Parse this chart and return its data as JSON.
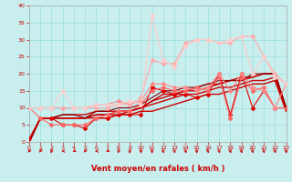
{
  "xlabel": "Vent moyen/en rafales ( km/h )",
  "xlim": [
    0,
    23
  ],
  "ylim": [
    0,
    40
  ],
  "yticks": [
    0,
    5,
    10,
    15,
    20,
    25,
    30,
    35,
    40
  ],
  "xticks": [
    0,
    1,
    2,
    3,
    4,
    5,
    6,
    7,
    8,
    9,
    10,
    11,
    12,
    13,
    14,
    15,
    16,
    17,
    18,
    19,
    20,
    21,
    22,
    23
  ],
  "bg_color": "#c8eeee",
  "grid_color": "#99dddd",
  "lines": [
    {
      "x": [
        0,
        1,
        2,
        3,
        4,
        5,
        6,
        7,
        8,
        9,
        10,
        11,
        12,
        13,
        14,
        15,
        16,
        17,
        18,
        19,
        20,
        21,
        22,
        23
      ],
      "y": [
        1,
        7,
        7,
        5,
        5,
        4,
        7,
        7,
        8,
        8,
        8,
        16,
        15,
        14,
        14,
        13,
        14,
        20,
        8,
        20,
        10,
        15,
        10,
        10
      ],
      "color": "#dd0000",
      "lw": 0.8,
      "marker": "D",
      "ms": 2.0
    },
    {
      "x": [
        0,
        1,
        2,
        3,
        4,
        5,
        6,
        7,
        8,
        9,
        10,
        11,
        12,
        13,
        14,
        15,
        16,
        17,
        18,
        19,
        20,
        21,
        22,
        23
      ],
      "y": [
        10,
        7,
        5,
        5,
        5,
        5,
        7,
        8,
        9,
        9,
        11,
        15,
        16,
        15,
        15,
        16,
        15,
        19,
        7,
        19,
        15,
        16,
        10,
        10
      ],
      "color": "#ff6666",
      "lw": 0.8,
      "marker": "D",
      "ms": 2.0
    },
    {
      "x": [
        0,
        1,
        2,
        3,
        4,
        5,
        6,
        7,
        8,
        9,
        10,
        11,
        12,
        13,
        14,
        15,
        16,
        17,
        18,
        19,
        20,
        21,
        22,
        23
      ],
      "y": [
        10,
        10,
        10,
        10,
        10,
        10,
        11,
        11,
        12,
        11,
        12,
        17,
        17,
        16,
        16,
        15,
        16,
        20,
        15,
        20,
        16,
        15,
        10,
        17
      ],
      "color": "#ff8888",
      "lw": 0.8,
      "marker": "D",
      "ms": 2.0
    },
    {
      "x": [
        0,
        1,
        2,
        3,
        4,
        5,
        6,
        7,
        8,
        9,
        10,
        11,
        12,
        13,
        14,
        15,
        16,
        17,
        18,
        19,
        20,
        21,
        22,
        23
      ],
      "y": [
        10,
        10,
        10,
        10,
        10,
        10,
        10,
        10,
        11,
        11,
        13,
        24,
        23,
        23,
        29,
        30,
        30,
        29,
        29,
        31,
        31,
        25,
        20,
        17
      ],
      "color": "#ffaaaa",
      "lw": 0.8,
      "marker": "D",
      "ms": 2.0
    },
    {
      "x": [
        0,
        1,
        2,
        3,
        4,
        5,
        6,
        7,
        8,
        9,
        10,
        11,
        12,
        13,
        14,
        15,
        16,
        17,
        18,
        19,
        20,
        21,
        22,
        23
      ],
      "y": [
        10,
        10,
        10,
        15,
        10,
        10,
        11,
        11,
        11,
        12,
        11,
        37,
        24,
        22,
        28,
        30,
        30,
        29,
        30,
        31,
        20,
        25,
        19,
        17
      ],
      "color": "#ffcccc",
      "lw": 0.8,
      "marker": "D",
      "ms": 2.0
    },
    {
      "x": [
        0,
        1,
        2,
        3,
        4,
        5,
        6,
        7,
        8,
        9,
        10,
        11,
        12,
        13,
        14,
        15,
        16,
        17,
        18,
        19,
        20,
        21,
        22,
        23
      ],
      "y": [
        0,
        7,
        7,
        7,
        7,
        7,
        7,
        7,
        8,
        8,
        9,
        9,
        10,
        11,
        12,
        13,
        14,
        14,
        15,
        16,
        17,
        17,
        18,
        9
      ],
      "color": "#cc0000",
      "lw": 1.0,
      "marker": null,
      "ms": 0
    },
    {
      "x": [
        0,
        1,
        2,
        3,
        4,
        5,
        6,
        7,
        8,
        9,
        10,
        11,
        12,
        13,
        14,
        15,
        16,
        17,
        18,
        19,
        20,
        21,
        22,
        23
      ],
      "y": [
        0,
        7,
        7,
        7,
        7,
        7,
        8,
        8,
        8,
        9,
        10,
        11,
        12,
        13,
        14,
        14,
        15,
        16,
        16,
        17,
        18,
        18,
        19,
        9
      ],
      "color": "#cc0000",
      "lw": 1.0,
      "marker": null,
      "ms": 0
    },
    {
      "x": [
        0,
        1,
        2,
        3,
        4,
        5,
        6,
        7,
        8,
        9,
        10,
        11,
        12,
        13,
        14,
        15,
        16,
        17,
        18,
        19,
        20,
        21,
        22,
        23
      ],
      "y": [
        0,
        7,
        7,
        7,
        7,
        7,
        8,
        8,
        9,
        9,
        10,
        12,
        13,
        14,
        15,
        16,
        17,
        17,
        18,
        19,
        19,
        20,
        20,
        10
      ],
      "color": "#cc0000",
      "lw": 1.0,
      "marker": null,
      "ms": 0
    },
    {
      "x": [
        0,
        1,
        2,
        3,
        4,
        5,
        6,
        7,
        8,
        9,
        10,
        11,
        12,
        13,
        14,
        15,
        16,
        17,
        18,
        19,
        20,
        21,
        22,
        23
      ],
      "y": [
        0,
        7,
        7,
        8,
        8,
        8,
        9,
        9,
        9,
        9,
        10,
        12,
        14,
        14,
        15,
        15,
        16,
        17,
        18,
        18,
        19,
        20,
        20,
        10
      ],
      "color": "#cc0000",
      "lw": 1.0,
      "marker": null,
      "ms": 0
    },
    {
      "x": [
        0,
        1,
        2,
        3,
        4,
        5,
        6,
        7,
        8,
        9,
        10,
        11,
        12,
        13,
        14,
        15,
        16,
        17,
        18,
        19,
        20,
        21,
        22,
        23
      ],
      "y": [
        0,
        7,
        7,
        8,
        8,
        7,
        9,
        9,
        10,
        10,
        11,
        13,
        15,
        15,
        16,
        16,
        17,
        18,
        18,
        18,
        20,
        20,
        20,
        10
      ],
      "color": "#880000",
      "lw": 0.8,
      "marker": null,
      "ms": 0
    }
  ],
  "wind_arrows": {
    "x": [
      0,
      1,
      2,
      3,
      4,
      5,
      6,
      7,
      8,
      9,
      10,
      11,
      12,
      13,
      14,
      15,
      16,
      17,
      18,
      19,
      20,
      21,
      22,
      23
    ],
    "angles_deg": [
      225,
      225,
      200,
      270,
      250,
      225,
      270,
      250,
      200,
      180,
      180,
      180,
      165,
      165,
      165,
      180,
      160,
      165,
      160,
      165,
      160,
      165,
      160,
      170
    ],
    "color": "#cc0000"
  }
}
